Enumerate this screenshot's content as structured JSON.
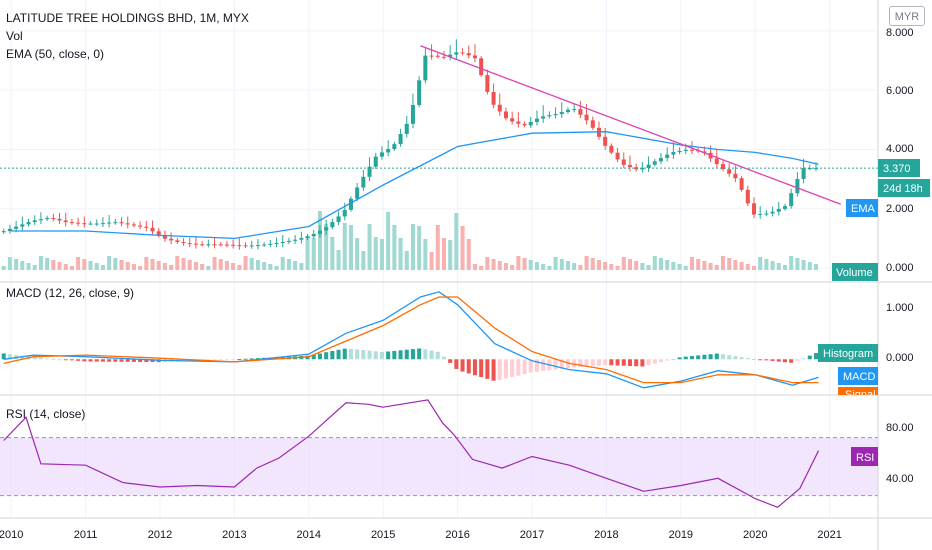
{
  "header": {
    "title": "LATITUDE TREE HOLDINGS BHD, 1M, MYX",
    "volume_label": "Vol",
    "ema_label": "EMA (50, close, 0)",
    "currency": "MYR"
  },
  "price_pane": {
    "y_ticks": [
      "8.000",
      "6.000",
      "4.000",
      "2.000",
      "0.000"
    ],
    "last_price_tag": "3.370",
    "countdown_tag": "24d 18h",
    "ema_tag": "EMA",
    "volume_tag": "Volume",
    "colors": {
      "up": "#26a69a",
      "down": "#ef5350",
      "ema": "#2196f3",
      "trendline": "#e040b0",
      "price_line": "#26a69a"
    }
  },
  "macd_pane": {
    "label": "MACD (12, 26, close, 9)",
    "y_ticks": [
      "1.000",
      "0.000"
    ],
    "histogram_tag": "Histogram",
    "macd_tag": "MACD",
    "signal_tag": "Signal",
    "colors": {
      "macd": "#2196f3",
      "signal": "#ff6d00",
      "hist_up": "#26a69a",
      "hist_down": "#ef5350"
    }
  },
  "rsi_pane": {
    "label": "RSI (14, close)",
    "y_ticks": [
      "80.00",
      "40.00"
    ],
    "rsi_tag": "RSI",
    "colors": {
      "line": "#9c27b0",
      "band": "#e9d6fb"
    }
  },
  "x_axis": {
    "labels": [
      "2010",
      "2011",
      "2012",
      "2013",
      "2014",
      "2015",
      "2016",
      "2017",
      "2018",
      "2019",
      "2020",
      "2021"
    ]
  },
  "chart_data": {
    "type": "candlestick",
    "title": "LATITUDE TREE HOLDINGS BHD, 1M, MYX",
    "x_range": [
      2009.85,
      2021.65
    ],
    "price": {
      "ylim": [
        0,
        8.2
      ],
      "quarterly_close": [
        1.2,
        1.4,
        1.6,
        1.7,
        1.55,
        1.5,
        1.5,
        1.55,
        1.45,
        1.35,
        1.0,
        0.85,
        0.8,
        0.8,
        0.78,
        0.75,
        0.78,
        0.85,
        0.95,
        1.1,
        1.4,
        1.9,
        2.9,
        3.8,
        4.1,
        5.0,
        7.2,
        7.1,
        7.3,
        7.1,
        5.6,
        5.0,
        4.8,
        5.1,
        5.2,
        5.4,
        4.9,
        4.1,
        3.5,
        3.3,
        3.6,
        3.9,
        4.0,
        3.9,
        3.4,
        3.0,
        1.8,
        1.85,
        2.1,
        3.37
      ],
      "last": 3.37
    },
    "ema50": {
      "x": [
        2010,
        2011,
        2012,
        2013,
        2014,
        2015,
        2016,
        2017,
        2018,
        2019,
        2019.5,
        2020,
        2020.5,
        2020.85
      ],
      "y": [
        1.25,
        1.25,
        1.1,
        1.0,
        1.4,
        2.8,
        4.1,
        4.55,
        4.6,
        4.15,
        4.0,
        3.9,
        3.7,
        3.5
      ]
    },
    "trendline": {
      "x": [
        2015.5,
        2021.15
      ],
      "y": [
        7.5,
        2.15
      ]
    },
    "volume_note": "monthly volume bars in lower price pane",
    "macd": {
      "ylim": [
        -0.65,
        1.45
      ],
      "x": [
        2009.9,
        2010.3,
        2011,
        2012,
        2013,
        2014,
        2014.5,
        2015,
        2015.5,
        2015.75,
        2016,
        2016.5,
        2017,
        2017.5,
        2018,
        2018.5,
        2019,
        2019.5,
        2020,
        2020.5,
        2020.85
      ],
      "macd": [
        0.0,
        0.08,
        0.05,
        -0.02,
        -0.05,
        0.1,
        0.5,
        0.75,
        1.2,
        1.3,
        1.05,
        0.3,
        -0.03,
        -0.2,
        -0.28,
        -0.55,
        -0.42,
        -0.22,
        -0.3,
        -0.5,
        -0.35
      ],
      "signal": [
        -0.08,
        0.05,
        0.08,
        0.02,
        -0.05,
        0.05,
        0.35,
        0.65,
        1.05,
        1.2,
        1.2,
        0.6,
        0.15,
        -0.08,
        -0.2,
        -0.45,
        -0.45,
        -0.3,
        -0.3,
        -0.45,
        -0.45
      ],
      "histogram": "macd minus signal"
    },
    "rsi": {
      "ylim": [
        16,
        98
      ],
      "upper_band": 70,
      "lower_band": 30,
      "x": [
        2009.9,
        2010.2,
        2010.4,
        2011,
        2011.5,
        2012,
        2012.5,
        2013,
        2013.3,
        2013.6,
        2014,
        2014.5,
        2014.8,
        2015,
        2015.6,
        2015.8,
        2015.95,
        2016.2,
        2016.6,
        2017,
        2017.5,
        2018,
        2018.5,
        2019,
        2019.5,
        2020,
        2020.3,
        2020.6,
        2020.85
      ],
      "y": [
        68,
        84,
        52,
        51,
        39,
        36,
        37,
        36,
        49,
        56,
        71,
        94,
        93,
        91,
        96,
        80,
        72,
        55,
        49,
        57,
        51,
        42,
        33,
        37,
        42,
        28,
        22,
        35,
        61
      ]
    }
  }
}
